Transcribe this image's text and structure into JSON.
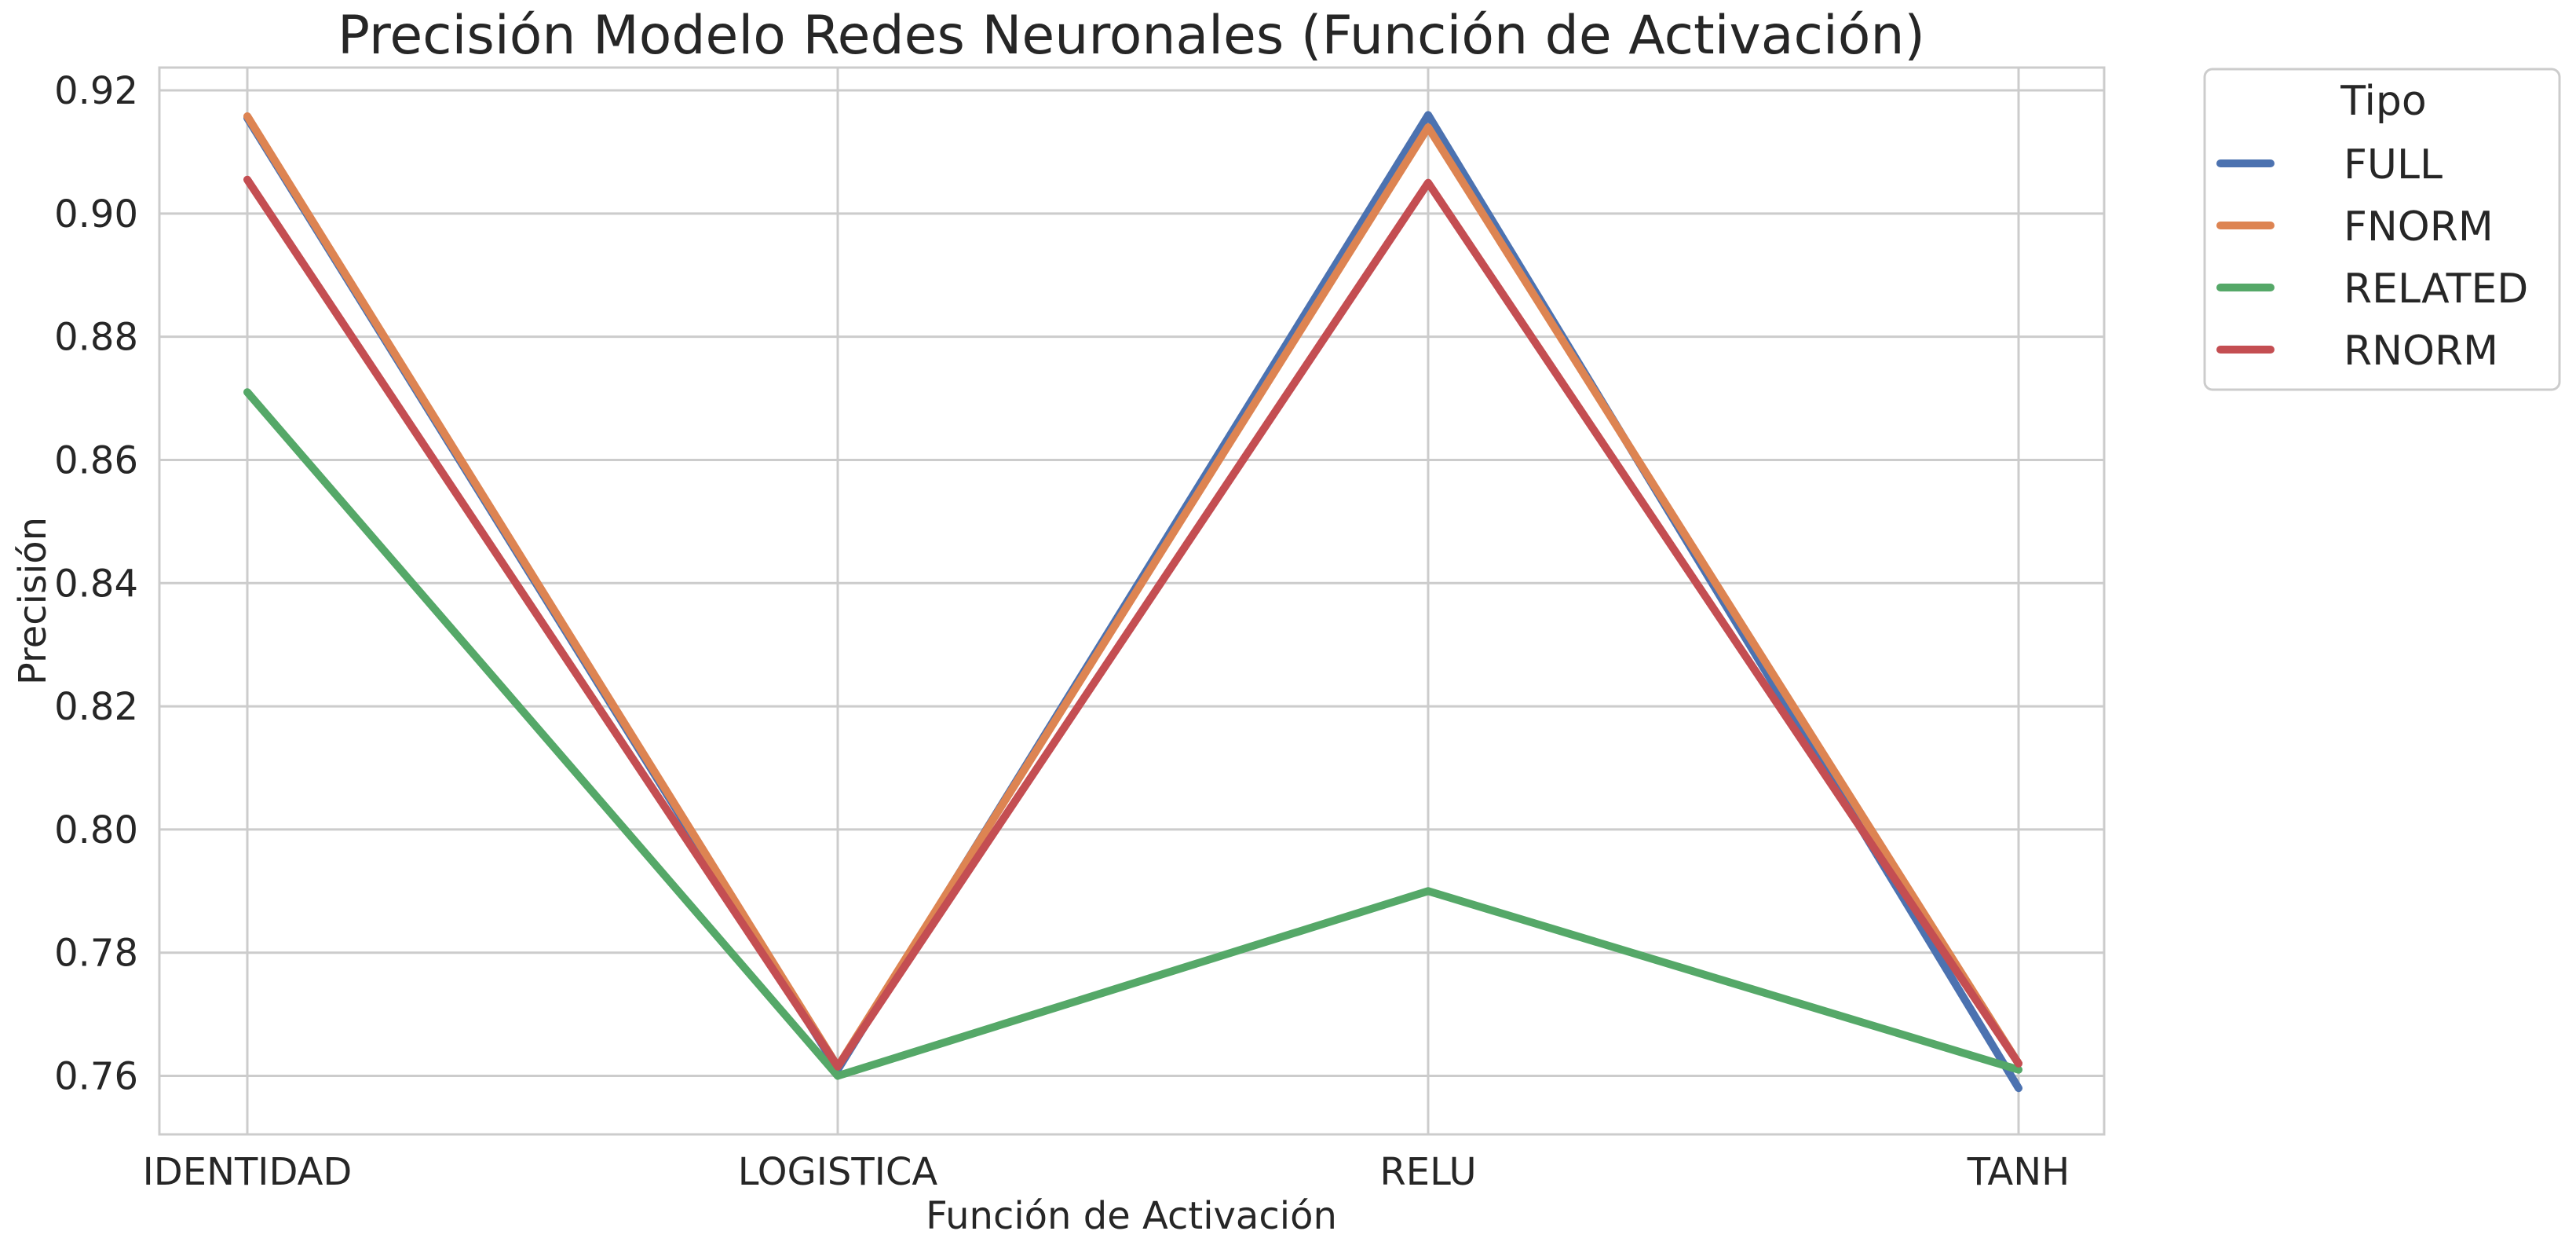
{
  "chart_data": {
    "type": "line",
    "title": "Precisión Modelo Redes Neuronales (Función de Activación)",
    "xlabel": "Función de Activación",
    "ylabel": "Precisión",
    "categories": [
      "IDENTIDAD",
      "LOGISTICA",
      "RELU",
      "TANH"
    ],
    "ylim": [
      0.7505,
      0.9237
    ],
    "yticks": [
      0.76,
      0.78,
      0.8,
      0.82,
      0.84,
      0.86,
      0.88,
      0.9,
      0.92
    ],
    "ytick_labels": [
      "0.76",
      "0.78",
      "0.80",
      "0.82",
      "0.84",
      "0.86",
      "0.88",
      "0.90",
      "0.92"
    ],
    "grid": true,
    "legend": {
      "title": "Tipo",
      "placement": "outside-right-top"
    },
    "series": [
      {
        "name": "FULL",
        "color": "#4c72b0",
        "values": [
          0.9155,
          0.761,
          0.916,
          0.758
        ]
      },
      {
        "name": "FNORM",
        "color": "#dd8452",
        "values": [
          0.9158,
          0.7615,
          0.914,
          0.762
        ]
      },
      {
        "name": "RELATED",
        "color": "#55a868",
        "values": [
          0.871,
          0.76,
          0.79,
          0.761
        ]
      },
      {
        "name": "RNORM",
        "color": "#c44e52",
        "values": [
          0.9055,
          0.7615,
          0.905,
          0.762
        ]
      }
    ]
  }
}
